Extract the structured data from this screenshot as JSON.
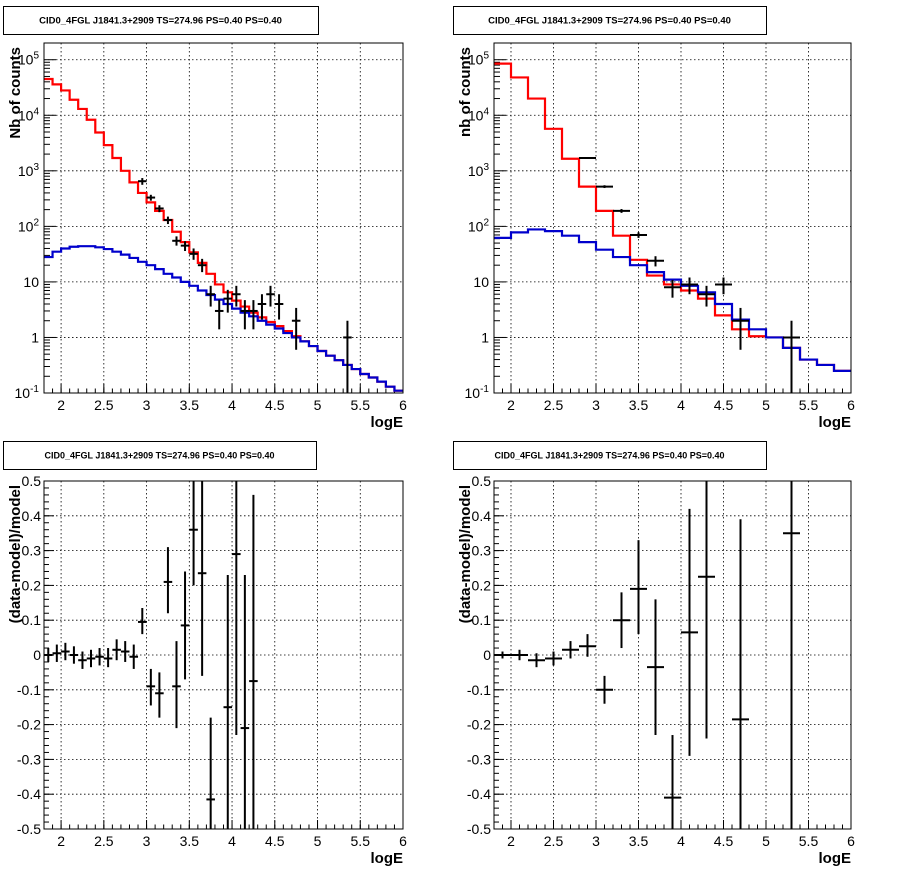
{
  "colors": {
    "data": "#000000",
    "total_model": "#ff0000",
    "bkg_model": "#0000cc",
    "grid": "#000000"
  },
  "chart_data": [
    {
      "type": "line",
      "title": "CID0_4FGL J1841.3+2909 TS=274.96 PS=0.40 PS=0.40",
      "xlabel": "logE",
      "ylabel": "Nb of counts",
      "xlim": [
        1.8,
        6.0
      ],
      "ylim": [
        0.1,
        200000
      ],
      "yscale": "log",
      "grid": true,
      "xticks": [
        "2",
        "2.5",
        "3",
        "3.5",
        "4",
        "4.5",
        "5",
        "5.5",
        "6"
      ],
      "yticks": [
        "10^-1",
        "1",
        "10",
        "10^2",
        "10^3",
        "10^4",
        "10^5"
      ],
      "series": [
        {
          "style": "step",
          "color": "#ff0000",
          "edges": [
            1.8,
            1.9,
            2.0,
            2.1,
            2.2,
            2.3,
            2.4,
            2.5,
            2.6,
            2.7,
            2.8,
            2.9,
            3.0,
            3.1,
            3.2,
            3.3,
            3.4,
            3.5,
            3.6,
            3.7,
            3.8,
            3.9,
            4.0,
            4.1,
            4.2,
            4.3,
            4.4,
            4.5,
            4.6,
            4.7,
            4.8,
            4.9,
            5.0,
            5.1,
            5.2,
            5.3,
            5.4,
            5.5,
            5.6,
            5.7,
            5.8,
            5.9,
            6.0
          ],
          "values": [
            45000,
            36000,
            28000,
            19000,
            13000,
            8300,
            4900,
            2900,
            1700,
            1000,
            620,
            400,
            270,
            190,
            130,
            80,
            52,
            34,
            22,
            14,
            9,
            6.5,
            4.6,
            3.6,
            2.8,
            2.3,
            1.9,
            1.6,
            1.3,
            1.05,
            0.85,
            0.7,
            0.57,
            0.47,
            0.39,
            0.32,
            0.27,
            0.22,
            0.19,
            0.16,
            0.13,
            0.11
          ]
        },
        {
          "style": "step",
          "color": "#0000cc",
          "edges": [
            1.8,
            1.9,
            2.0,
            2.1,
            2.2,
            2.3,
            2.4,
            2.5,
            2.6,
            2.7,
            2.8,
            2.9,
            3.0,
            3.1,
            3.2,
            3.3,
            3.4,
            3.5,
            3.6,
            3.7,
            3.8,
            3.9,
            4.0,
            4.1,
            4.2,
            4.3,
            4.4,
            4.5,
            4.6,
            4.7,
            4.8,
            4.9,
            5.0,
            5.1,
            5.2,
            5.3,
            5.4,
            5.5,
            5.6,
            5.7,
            5.8,
            5.9,
            6.0
          ],
          "values": [
            28,
            35,
            40,
            43,
            44,
            44,
            42,
            39,
            35,
            31,
            27,
            23,
            20,
            17,
            14,
            12,
            10,
            8.5,
            7,
            5.8,
            4.8,
            4,
            3.3,
            2.8,
            2.4,
            2.0,
            1.7,
            1.45,
            1.2,
            1.0,
            0.85,
            0.7,
            0.57,
            0.47,
            0.39,
            0.32,
            0.27,
            0.22,
            0.19,
            0.16,
            0.13,
            0.11
          ]
        },
        {
          "style": "errorbar",
          "color": "#000000",
          "points": [
            {
              "x": 2.95,
              "y": 650,
              "xerr": 0.05,
              "ylo": 560,
              "yhi": 740
            },
            {
              "x": 3.05,
              "y": 330,
              "xerr": 0.05,
              "ylo": 290,
              "yhi": 370
            },
            {
              "x": 3.15,
              "y": 210,
              "xerr": 0.05,
              "ylo": 180,
              "yhi": 240
            },
            {
              "x": 3.25,
              "y": 130,
              "xerr": 0.05,
              "ylo": 110,
              "yhi": 150
            },
            {
              "x": 3.35,
              "y": 55,
              "xerr": 0.05,
              "ylo": 45,
              "yhi": 66
            },
            {
              "x": 3.45,
              "y": 45,
              "xerr": 0.05,
              "ylo": 36,
              "yhi": 54
            },
            {
              "x": 3.55,
              "y": 32,
              "xerr": 0.05,
              "ylo": 25,
              "yhi": 40
            },
            {
              "x": 3.65,
              "y": 20,
              "xerr": 0.05,
              "ylo": 15,
              "yhi": 26
            },
            {
              "x": 3.75,
              "y": 6,
              "xerr": 0.05,
              "ylo": 3.6,
              "yhi": 8.5
            },
            {
              "x": 3.85,
              "y": 3,
              "xerr": 0.05,
              "ylo": 1.4,
              "yhi": 4.7
            },
            {
              "x": 3.95,
              "y": 5,
              "xerr": 0.05,
              "ylo": 2.8,
              "yhi": 7.2
            },
            {
              "x": 4.05,
              "y": 6,
              "xerr": 0.05,
              "ylo": 3.6,
              "yhi": 8.5
            },
            {
              "x": 4.15,
              "y": 3,
              "xerr": 0.05,
              "ylo": 1.4,
              "yhi": 4.7
            },
            {
              "x": 4.25,
              "y": 3,
              "xerr": 0.05,
              "ylo": 1.4,
              "yhi": 4.7
            },
            {
              "x": 4.35,
              "y": 4,
              "xerr": 0.05,
              "ylo": 2.1,
              "yhi": 6
            },
            {
              "x": 4.45,
              "y": 6,
              "xerr": 0.05,
              "ylo": 3.6,
              "yhi": 8.5
            },
            {
              "x": 4.55,
              "y": 4,
              "xerr": 0.05,
              "ylo": 2.1,
              "yhi": 6
            },
            {
              "x": 4.75,
              "y": 2,
              "xerr": 0.05,
              "ylo": 0.6,
              "yhi": 3.4
            },
            {
              "x": 5.35,
              "y": 1,
              "xerr": 0.05,
              "ylo": 0.1,
              "yhi": 2
            }
          ]
        }
      ]
    },
    {
      "type": "line",
      "title": "CID0_4FGL J1841.3+2909 TS=274.96 PS=0.40 PS=0.40",
      "xlabel": "logE",
      "ylabel": "nb of counts",
      "xlim": [
        1.8,
        6.0
      ],
      "ylim": [
        0.1,
        200000
      ],
      "yscale": "log",
      "grid": true,
      "xticks": [
        "2",
        "2.5",
        "3",
        "3.5",
        "4",
        "4.5",
        "5",
        "5.5",
        "6"
      ],
      "yticks": [
        "10^-1",
        "1",
        "10",
        "10^2",
        "10^3",
        "10^4",
        "10^5"
      ],
      "series": [
        {
          "style": "step",
          "color": "#ff0000",
          "edges": [
            1.8,
            2.0,
            2.2,
            2.4,
            2.6,
            2.8,
            3.0,
            3.2,
            3.4,
            3.6,
            3.8,
            4.0,
            4.2,
            4.4,
            4.6,
            4.8,
            5.0,
            5.2,
            5.4,
            5.6,
            5.8,
            6.0
          ],
          "values": [
            85000,
            48000,
            20000,
            5700,
            1650,
            520,
            190,
            68,
            25,
            13,
            9,
            7,
            5,
            2.5,
            1.4,
            1.05,
            1.0,
            0.65,
            0.4,
            0.32,
            0.25
          ]
        },
        {
          "style": "step",
          "color": "#0000cc",
          "edges": [
            1.8,
            2.0,
            2.2,
            2.4,
            2.6,
            2.8,
            3.0,
            3.2,
            3.4,
            3.6,
            3.8,
            4.0,
            4.2,
            4.4,
            4.6,
            4.8,
            5.0,
            5.2,
            5.4,
            5.6,
            5.8,
            6.0
          ],
          "values": [
            62,
            78,
            88,
            82,
            68,
            52,
            38,
            28,
            20,
            15,
            11,
            8.5,
            6.5,
            4,
            2.1,
            1.4,
            1.0,
            0.65,
            0.4,
            0.32,
            0.25
          ]
        },
        {
          "style": "errorbar",
          "color": "#000000",
          "points": [
            {
              "x": 2.9,
              "y": 1700,
              "xerr": 0.1,
              "ylo": 1640,
              "yhi": 1760
            },
            {
              "x": 3.1,
              "y": 520,
              "xerr": 0.1,
              "ylo": 490,
              "yhi": 550
            },
            {
              "x": 3.3,
              "y": 190,
              "xerr": 0.1,
              "ylo": 175,
              "yhi": 205
            },
            {
              "x": 3.5,
              "y": 70,
              "xerr": 0.1,
              "ylo": 62,
              "yhi": 78
            },
            {
              "x": 3.7,
              "y": 24,
              "xerr": 0.1,
              "ylo": 19,
              "yhi": 29
            },
            {
              "x": 3.9,
              "y": 8,
              "xerr": 0.1,
              "ylo": 5.2,
              "yhi": 10.8
            },
            {
              "x": 4.1,
              "y": 9,
              "xerr": 0.1,
              "ylo": 6,
              "yhi": 12
            },
            {
              "x": 4.3,
              "y": 6,
              "xerr": 0.1,
              "ylo": 3.6,
              "yhi": 8.5
            },
            {
              "x": 4.5,
              "y": 9,
              "xerr": 0.1,
              "ylo": 6,
              "yhi": 12
            },
            {
              "x": 4.7,
              "y": 2,
              "xerr": 0.1,
              "ylo": 0.6,
              "yhi": 3.4
            },
            {
              "x": 5.3,
              "y": 1,
              "xerr": 0.1,
              "ylo": 0.1,
              "yhi": 2
            }
          ]
        }
      ]
    },
    {
      "type": "scatter",
      "title": "CID0_4FGL J1841.3+2909 TS=274.96 PS=0.40 PS=0.40",
      "xlabel": "logE",
      "ylabel": "(data-model)/model",
      "xlim": [
        1.8,
        6.0
      ],
      "ylim": [
        -0.5,
        0.5
      ],
      "grid": true,
      "xticks": [
        "2",
        "2.5",
        "3",
        "3.5",
        "4",
        "4.5",
        "5",
        "5.5",
        "6"
      ],
      "yticks": [
        "-0.5",
        "-0.4",
        "-0.3",
        "-0.2",
        "-0.1",
        "0",
        "0.1",
        "0.2",
        "0.3",
        "0.4",
        "0.5"
      ],
      "series": [
        {
          "style": "errorbar",
          "color": "#000000",
          "points": [
            {
              "x": 1.85,
              "y": 0.0,
              "xerr": 0.05,
              "ylo": -0.02,
              "yhi": 0.02
            },
            {
              "x": 1.95,
              "y": 0.005,
              "xerr": 0.05,
              "ylo": -0.02,
              "yhi": 0.03
            },
            {
              "x": 2.05,
              "y": 0.01,
              "xerr": 0.05,
              "ylo": -0.015,
              "yhi": 0.035
            },
            {
              "x": 2.15,
              "y": 0.0,
              "xerr": 0.05,
              "ylo": -0.025,
              "yhi": 0.025
            },
            {
              "x": 2.25,
              "y": -0.015,
              "xerr": 0.05,
              "ylo": -0.04,
              "yhi": 0.01
            },
            {
              "x": 2.35,
              "y": -0.01,
              "xerr": 0.05,
              "ylo": -0.035,
              "yhi": 0.015
            },
            {
              "x": 2.45,
              "y": -0.005,
              "xerr": 0.05,
              "ylo": -0.03,
              "yhi": 0.02
            },
            {
              "x": 2.55,
              "y": -0.01,
              "xerr": 0.05,
              "ylo": -0.035,
              "yhi": 0.02
            },
            {
              "x": 2.65,
              "y": 0.015,
              "xerr": 0.05,
              "ylo": -0.015,
              "yhi": 0.045
            },
            {
              "x": 2.75,
              "y": 0.01,
              "xerr": 0.05,
              "ylo": -0.02,
              "yhi": 0.04
            },
            {
              "x": 2.85,
              "y": -0.005,
              "xerr": 0.05,
              "ylo": -0.04,
              "yhi": 0.03
            },
            {
              "x": 2.95,
              "y": 0.095,
              "xerr": 0.05,
              "ylo": 0.06,
              "yhi": 0.135
            },
            {
              "x": 3.05,
              "y": -0.09,
              "xerr": 0.05,
              "ylo": -0.145,
              "yhi": -0.04
            },
            {
              "x": 3.15,
              "y": -0.11,
              "xerr": 0.05,
              "ylo": -0.18,
              "yhi": -0.05
            },
            {
              "x": 3.25,
              "y": 0.21,
              "xerr": 0.05,
              "ylo": 0.12,
              "yhi": 0.31
            },
            {
              "x": 3.35,
              "y": -0.09,
              "xerr": 0.05,
              "ylo": -0.21,
              "yhi": 0.04
            },
            {
              "x": 3.45,
              "y": 0.085,
              "xerr": 0.05,
              "ylo": -0.07,
              "yhi": 0.24
            },
            {
              "x": 3.55,
              "y": 0.36,
              "xerr": 0.05,
              "ylo": 0.2,
              "yhi": 0.5
            },
            {
              "x": 3.65,
              "y": 0.235,
              "xerr": 0.05,
              "ylo": -0.06,
              "yhi": 0.5
            },
            {
              "x": 3.75,
              "y": -0.415,
              "xerr": 0.05,
              "ylo": -0.5,
              "yhi": -0.18
            },
            {
              "x": 3.95,
              "y": -0.15,
              "xerr": 0.05,
              "ylo": -0.5,
              "yhi": 0.23
            },
            {
              "x": 4.05,
              "y": 0.29,
              "xerr": 0.05,
              "ylo": -0.23,
              "yhi": 0.5
            },
            {
              "x": 4.15,
              "y": -0.21,
              "xerr": 0.05,
              "ylo": -0.5,
              "yhi": 0.23
            },
            {
              "x": 4.25,
              "y": -0.075,
              "xerr": 0.05,
              "ylo": -0.5,
              "yhi": 0.46
            }
          ]
        }
      ]
    },
    {
      "type": "scatter",
      "title": "CID0_4FGL J1841.3+2909 TS=274.96 PS=0.40 PS=0.40",
      "xlabel": "logE",
      "ylabel": "(data-model)/model",
      "xlim": [
        1.8,
        6.0
      ],
      "ylim": [
        -0.5,
        0.5
      ],
      "grid": true,
      "xticks": [
        "2",
        "2.5",
        "3",
        "3.5",
        "4",
        "4.5",
        "5",
        "5.5",
        "6"
      ],
      "yticks": [
        "-0.5",
        "-0.4",
        "-0.3",
        "-0.2",
        "-0.1",
        "0",
        "0.1",
        "0.2",
        "0.3",
        "0.4",
        "0.5"
      ],
      "series": [
        {
          "style": "errorbar",
          "color": "#000000",
          "points": [
            {
              "x": 1.9,
              "y": 0.0,
              "xerr": 0.1,
              "ylo": -0.01,
              "yhi": 0.01
            },
            {
              "x": 2.1,
              "y": 0.0,
              "xerr": 0.1,
              "ylo": -0.015,
              "yhi": 0.015
            },
            {
              "x": 2.3,
              "y": -0.015,
              "xerr": 0.1,
              "ylo": -0.035,
              "yhi": 0.005
            },
            {
              "x": 2.5,
              "y": -0.01,
              "xerr": 0.1,
              "ylo": -0.03,
              "yhi": 0.01
            },
            {
              "x": 2.7,
              "y": 0.015,
              "xerr": 0.1,
              "ylo": -0.01,
              "yhi": 0.04
            },
            {
              "x": 2.9,
              "y": 0.025,
              "xerr": 0.1,
              "ylo": -0.005,
              "yhi": 0.06
            },
            {
              "x": 3.1,
              "y": -0.1,
              "xerr": 0.1,
              "ylo": -0.14,
              "yhi": -0.06
            },
            {
              "x": 3.3,
              "y": 0.1,
              "xerr": 0.1,
              "ylo": 0.02,
              "yhi": 0.18
            },
            {
              "x": 3.5,
              "y": 0.19,
              "xerr": 0.1,
              "ylo": 0.06,
              "yhi": 0.33
            },
            {
              "x": 3.7,
              "y": -0.035,
              "xerr": 0.1,
              "ylo": -0.23,
              "yhi": 0.16
            },
            {
              "x": 3.9,
              "y": -0.41,
              "xerr": 0.1,
              "ylo": -0.5,
              "yhi": -0.23
            },
            {
              "x": 4.1,
              "y": 0.065,
              "xerr": 0.1,
              "ylo": -0.29,
              "yhi": 0.42
            },
            {
              "x": 4.3,
              "y": 0.225,
              "xerr": 0.1,
              "ylo": -0.24,
              "yhi": 0.5
            },
            {
              "x": 4.7,
              "y": -0.185,
              "xerr": 0.1,
              "ylo": -0.5,
              "yhi": 0.39
            },
            {
              "x": 5.3,
              "y": 0.35,
              "xerr": 0.1,
              "ylo": -0.5,
              "yhi": 0.5
            }
          ]
        }
      ]
    }
  ]
}
